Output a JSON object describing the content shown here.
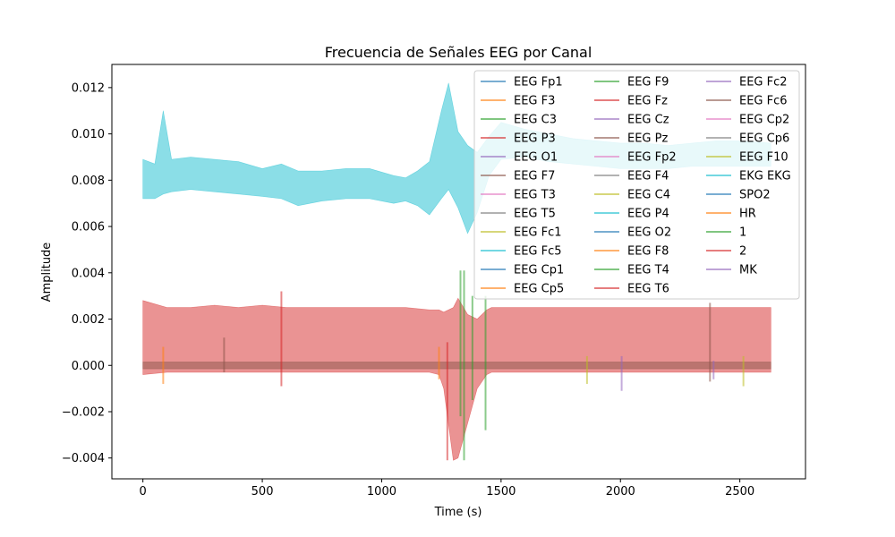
{
  "chart_data": {
    "type": "line",
    "title": "Frecuencia de Señales EEG por Canal",
    "xlabel": "Time (s)",
    "ylabel": "Amplitude",
    "xlim": [
      -130,
      2775
    ],
    "ylim": [
      -0.0049,
      0.013
    ],
    "x_ticks": [
      {
        "value": 0,
        "label": "0"
      },
      {
        "value": 500,
        "label": "500"
      },
      {
        "value": 1000,
        "label": "1000"
      },
      {
        "value": 1500,
        "label": "1500"
      },
      {
        "value": 2000,
        "label": "2000"
      },
      {
        "value": 2500,
        "label": "2500"
      }
    ],
    "y_ticks": [
      {
        "value": -0.004,
        "label": "−0.004"
      },
      {
        "value": -0.002,
        "label": "−0.002"
      },
      {
        "value": 0.0,
        "label": "0.000"
      },
      {
        "value": 0.002,
        "label": "0.002"
      },
      {
        "value": 0.004,
        "label": "0.004"
      },
      {
        "value": 0.006,
        "label": "0.006"
      },
      {
        "value": 0.008,
        "label": "0.008"
      },
      {
        "value": 0.01,
        "label": "0.010"
      },
      {
        "value": 0.012,
        "label": "0.012"
      }
    ],
    "grid": false,
    "legend_position": "top-right",
    "legend_columns": 3,
    "series": [
      {
        "name": "EEG Fp1",
        "color": "#1f77b4"
      },
      {
        "name": "EEG F3",
        "color": "#ff7f0e"
      },
      {
        "name": "EEG C3",
        "color": "#2ca02c"
      },
      {
        "name": "EEG P3",
        "color": "#d62728"
      },
      {
        "name": "EEG O1",
        "color": "#9467bd"
      },
      {
        "name": "EEG F7",
        "color": "#8c564b"
      },
      {
        "name": "EEG T3",
        "color": "#e377c2"
      },
      {
        "name": "EEG T5",
        "color": "#7f7f7f"
      },
      {
        "name": "EEG Fc1",
        "color": "#bcbd22"
      },
      {
        "name": "EEG Fc5",
        "color": "#17becf"
      },
      {
        "name": "EEG Cp1",
        "color": "#1f77b4"
      },
      {
        "name": "EEG Cp5",
        "color": "#ff7f0e"
      },
      {
        "name": "EEG F9",
        "color": "#2ca02c"
      },
      {
        "name": "EEG Fz",
        "color": "#d62728"
      },
      {
        "name": "EEG Cz",
        "color": "#9467bd"
      },
      {
        "name": "EEG Pz",
        "color": "#8c564b"
      },
      {
        "name": "EEG Fp2",
        "color": "#e377c2"
      },
      {
        "name": "EEG F4",
        "color": "#7f7f7f"
      },
      {
        "name": "EEG C4",
        "color": "#bcbd22"
      },
      {
        "name": "EEG P4",
        "color": "#17becf"
      },
      {
        "name": "EEG O2",
        "color": "#1f77b4"
      },
      {
        "name": "EEG F8",
        "color": "#ff7f0e"
      },
      {
        "name": "EEG T4",
        "color": "#2ca02c"
      },
      {
        "name": "EEG T6",
        "color": "#d62728"
      },
      {
        "name": "EEG Fc2",
        "color": "#9467bd"
      },
      {
        "name": "EEG Fc6",
        "color": "#8c564b"
      },
      {
        "name": "EEG Cp2",
        "color": "#e377c2"
      },
      {
        "name": "EEG Cp6",
        "color": "#7f7f7f"
      },
      {
        "name": "EEG F10",
        "color": "#bcbd22"
      },
      {
        "name": "EKG EKG",
        "color": "#17becf"
      },
      {
        "name": "SPO2",
        "color": "#1f77b4"
      },
      {
        "name": "HR",
        "color": "#ff7f0e"
      },
      {
        "name": "1",
        "color": "#2ca02c"
      },
      {
        "name": "2",
        "color": "#d62728"
      },
      {
        "name": "MK",
        "color": "#9467bd"
      }
    ],
    "bands": [
      {
        "series": "EKG EKG",
        "color": "#17becf",
        "x": [
          0,
          50,
          85,
          120,
          200,
          300,
          400,
          500,
          580,
          650,
          750,
          850,
          950,
          1050,
          1100,
          1150,
          1200,
          1250,
          1280,
          1320,
          1360,
          1400,
          1450,
          1500,
          1600,
          1700,
          1800,
          1900,
          2000,
          2100,
          2200,
          2300,
          2400,
          2500,
          2630
        ],
        "upper": [
          0.0089,
          0.0087,
          0.011,
          0.0089,
          0.009,
          0.0089,
          0.0088,
          0.0085,
          0.0087,
          0.0084,
          0.0084,
          0.0085,
          0.0085,
          0.0082,
          0.0081,
          0.0084,
          0.0088,
          0.011,
          0.0122,
          0.0101,
          0.0095,
          0.0092,
          0.0099,
          0.0105,
          0.0102,
          0.01,
          0.0098,
          0.0097,
          0.0096,
          0.0096,
          0.0095,
          0.0096,
          0.0097,
          0.0097,
          0.0096
        ],
        "lower": [
          0.0072,
          0.0072,
          0.0074,
          0.0075,
          0.0076,
          0.0075,
          0.0074,
          0.0073,
          0.0072,
          0.0069,
          0.0071,
          0.0072,
          0.0072,
          0.007,
          0.0071,
          0.0069,
          0.0065,
          0.0072,
          0.0076,
          0.0068,
          0.0057,
          0.0066,
          0.0082,
          0.0089,
          0.009,
          0.0088,
          0.0087,
          0.0086,
          0.0085,
          0.0085,
          0.0085,
          0.0086,
          0.0086,
          0.0086,
          0.0086
        ]
      },
      {
        "series": "2",
        "color": "#d62728",
        "x": [
          0,
          100,
          200,
          300,
          400,
          500,
          600,
          700,
          800,
          900,
          1000,
          1100,
          1200,
          1240,
          1260,
          1300,
          1320,
          1360,
          1400,
          1440,
          1460,
          1500,
          1600,
          1700,
          1800,
          1900,
          2000,
          2100,
          2200,
          2300,
          2400,
          2500,
          2630
        ],
        "upper": [
          0.0028,
          0.0025,
          0.0025,
          0.0026,
          0.0025,
          0.0026,
          0.0025,
          0.0025,
          0.0025,
          0.0025,
          0.0025,
          0.0025,
          0.0024,
          0.0024,
          0.0023,
          0.0025,
          0.0029,
          0.0022,
          0.002,
          0.0024,
          0.0025,
          0.0025,
          0.0025,
          0.0025,
          0.0025,
          0.0025,
          0.0025,
          0.0025,
          0.0025,
          0.0025,
          0.0025,
          0.0025,
          0.0025
        ],
        "lower": [
          -0.0004,
          -0.0003,
          -0.0003,
          -0.0003,
          -0.0003,
          -0.0003,
          -0.0003,
          -0.0003,
          -0.0003,
          -0.0003,
          -0.0003,
          -0.0003,
          -0.0003,
          -0.0004,
          -0.001,
          -0.0041,
          -0.004,
          -0.0025,
          -0.001,
          -0.0004,
          -0.0003,
          -0.0003,
          -0.0003,
          -0.0003,
          -0.0003,
          -0.0003,
          -0.0003,
          -0.0003,
          -0.0003,
          -0.0003,
          -0.0003,
          -0.0003,
          -0.0003
        ]
      },
      {
        "series": "EEG Fp1",
        "color": "#8c564b",
        "x": [
          0,
          2630
        ],
        "upper": [
          0.00015,
          0.00015
        ],
        "lower": [
          -0.00015,
          -0.00015
        ]
      }
    ],
    "spikes": [
      {
        "series": "HR",
        "color": "#ff7f0e",
        "x": 85,
        "y0": -0.0008,
        "y1": 0.0008
      },
      {
        "series": "EEG F7",
        "color": "#8c564b",
        "x": 340,
        "y0": -0.0003,
        "y1": 0.0012
      },
      {
        "series": "2",
        "color": "#d62728",
        "x": 580,
        "y0": -0.0009,
        "y1": 0.0032
      },
      {
        "series": "EEG F3",
        "color": "#ff7f0e",
        "x": 1240,
        "y0": -0.0006,
        "y1": 0.0008
      },
      {
        "series": "EEG Fz",
        "color": "#d62728",
        "x": 1275,
        "y0": -0.0041,
        "y1": 0.001
      },
      {
        "series": "1",
        "color": "#2ca02c",
        "x": 1330,
        "y0": -0.0022,
        "y1": 0.0041
      },
      {
        "series": "1",
        "color": "#2ca02c",
        "x": 1345,
        "y0": -0.0041,
        "y1": 0.0041
      },
      {
        "series": "EEG F9",
        "color": "#2ca02c",
        "x": 1380,
        "y0": -0.0015,
        "y1": 0.003
      },
      {
        "series": "EEG T4",
        "color": "#2ca02c",
        "x": 1435,
        "y0": -0.0028,
        "y1": 0.003
      },
      {
        "series": "EEG C4",
        "color": "#bcbd22",
        "x": 1860,
        "y0": -0.0008,
        "y1": 0.0004
      },
      {
        "series": "EEG O1",
        "color": "#9467bd",
        "x": 2005,
        "y0": -0.0011,
        "y1": 0.0004
      },
      {
        "series": "EEG Fc6",
        "color": "#8c564b",
        "x": 2375,
        "y0": -0.0007,
        "y1": 0.0027
      },
      {
        "series": "EEG Cz",
        "color": "#9467bd",
        "x": 2390,
        "y0": -0.0006,
        "y1": 0.0002
      },
      {
        "series": "EEG C3",
        "color": "#bcbd22",
        "x": 2515,
        "y0": -0.0009,
        "y1": 0.0004
      }
    ]
  }
}
